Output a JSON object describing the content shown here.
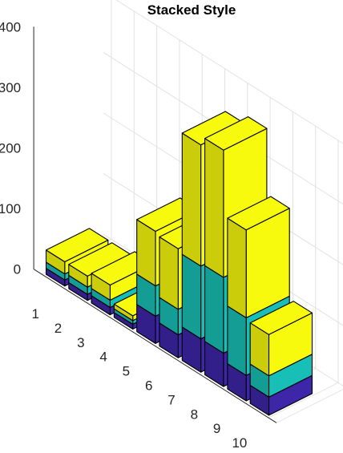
{
  "chart_data": {
    "type": "bar",
    "style": "3d-stacked",
    "title": "Stacked Style",
    "xlabel": "",
    "ylabel": "",
    "categories": [
      "1",
      "2",
      "3",
      "4",
      "5",
      "6",
      "7",
      "8",
      "9",
      "10"
    ],
    "series": [
      {
        "color": "#3e26a8",
        "values": [
          10,
          10,
          12,
          8,
          45,
          38,
          55,
          55,
          42,
          30
        ]
      },
      {
        "color": "#17bfb6",
        "values": [
          10,
          12,
          12,
          6,
          50,
          42,
          120,
          125,
          95,
          35
        ]
      },
      {
        "color": "#f8fa0d",
        "values": [
          20,
          18,
          25,
          8,
          90,
          100,
          200,
          210,
          145,
          68
        ]
      }
    ],
    "zlim": [
      0,
      400
    ],
    "zticks": [
      0,
      100,
      200,
      300,
      400
    ],
    "grid": true,
    "legend": "none"
  }
}
